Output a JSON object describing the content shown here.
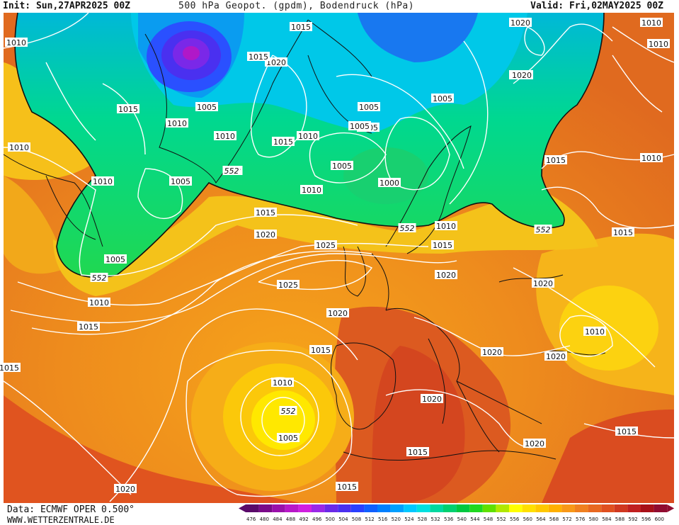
{
  "header": {
    "init": "Init: Sun,27APR2025 00Z",
    "title": "500 hPa Geopot. (gpdm), Bodendruck (hPa)",
    "valid": "Valid: Fri,02MAY2025 00Z"
  },
  "footer": {
    "data_source": "Data: ECMWF OPER 0.500°",
    "website": "WWW.WETTERZENTRALE.DE"
  },
  "legend": {
    "values": [
      "476",
      "480",
      "484",
      "488",
      "492",
      "496",
      "500",
      "504",
      "508",
      "512",
      "516",
      "520",
      "524",
      "528",
      "532",
      "536",
      "540",
      "544",
      "548",
      "552",
      "556",
      "560",
      "564",
      "568",
      "572",
      "576",
      "580",
      "584",
      "588",
      "592",
      "596",
      "600"
    ],
    "colors": [
      "#5a0a6a",
      "#7a0a8a",
      "#9a10aa",
      "#b818c8",
      "#d020e0",
      "#9a28e8",
      "#6a2ae8",
      "#4a30f0",
      "#2a40ff",
      "#1060ff",
      "#0080ff",
      "#00a0ff",
      "#00c8ff",
      "#00e0e0",
      "#00d8a0",
      "#00d070",
      "#00c840",
      "#20d820",
      "#60e000",
      "#b0e800",
      "#ffff00",
      "#ffe000",
      "#ffc800",
      "#ffb000",
      "#f89818",
      "#f08020",
      "#e86820",
      "#e05020",
      "#d03820",
      "#c02020",
      "#a81018",
      "#900c30"
    ]
  },
  "map": {
    "pressure_labels": [
      "1010",
      "1015",
      "1020",
      "1015",
      "1020",
      "1010",
      "1005",
      "1015",
      "1005",
      "1010",
      "1005",
      "1005",
      "1015",
      "1010",
      "1010",
      "1005",
      "1020",
      "1010",
      "1010",
      "1015",
      "1010",
      "1005",
      "1010",
      "1005",
      "1000",
      "1010",
      "1015",
      "1010",
      "1005",
      "1015",
      "1020",
      "1015",
      "1010",
      "1025",
      "1015",
      "1020",
      "1020",
      "1025",
      "1020",
      "1010",
      "1015",
      "1020",
      "1015",
      "1015",
      "1010",
      "1005",
      "1015",
      "1020",
      "1015",
      "1020",
      "1020",
      "1020",
      "1015",
      "1020"
    ],
    "geopotential_labels": [
      "552",
      "552",
      "552",
      "552",
      "552",
      "552"
    ]
  }
}
